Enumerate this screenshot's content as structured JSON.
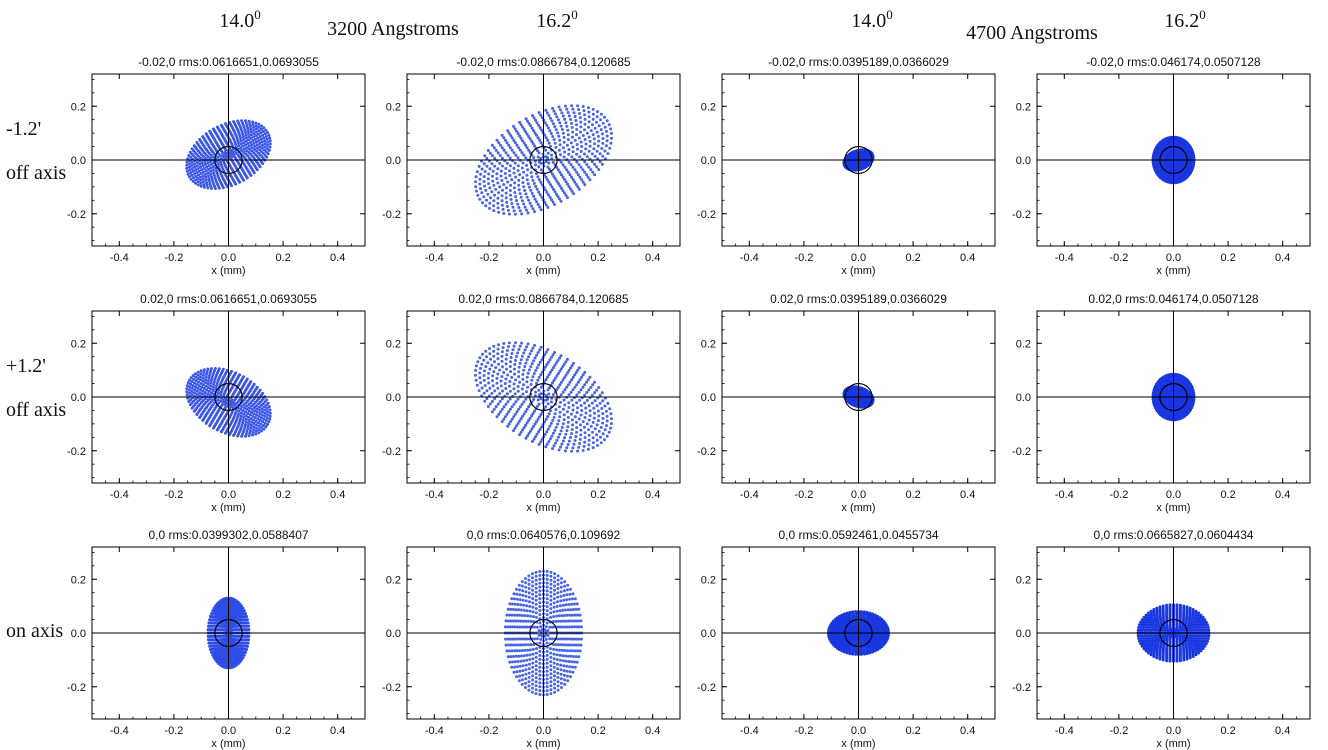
{
  "figure": {
    "col_headers": [
      {
        "base": "14.0",
        "sup": "0"
      },
      {
        "base": "16.2",
        "sup": "0"
      },
      {
        "base": "14.0",
        "sup": "0"
      },
      {
        "base": "16.2",
        "sup": "0"
      }
    ],
    "group_labels": [
      "3200 Angstroms",
      "4700 Angstroms"
    ],
    "row_labels": [
      [
        "-1.2'",
        "off axis"
      ],
      [
        "+1.2'",
        "off axis"
      ],
      [
        "on axis"
      ]
    ]
  },
  "chart_data": [
    {
      "type": "scatter",
      "row": 0,
      "col": 0,
      "title": "-0.02,0 rms:0.0616651,0.0693055",
      "xlabel": "x (mm)",
      "ylabel": "",
      "xlim": [
        -0.5,
        0.5
      ],
      "ylim": [
        -0.32,
        0.32
      ],
      "xticks": [
        -0.4,
        -0.2,
        0.0,
        0.2,
        0.4
      ],
      "yticks": [
        0.2,
        0.0,
        -0.2
      ],
      "color": "#3b57ea",
      "spot": {
        "center": [
          0.0,
          0.02
        ],
        "semi_major": 0.165,
        "semi_minor": 0.11,
        "tilt_deg": 30
      },
      "circle_radius": 0.05
    },
    {
      "type": "scatter",
      "row": 0,
      "col": 1,
      "title": "-0.02,0 rms:0.0866784,0.120685",
      "xlabel": "x (mm)",
      "ylabel": "",
      "xlim": [
        -0.5,
        0.5
      ],
      "ylim": [
        -0.32,
        0.32
      ],
      "xticks": [
        -0.4,
        -0.2,
        0.0,
        0.2,
        0.4
      ],
      "yticks": [
        0.2,
        0.0,
        -0.2
      ],
      "color": "#4a64e8",
      "spot": {
        "center": [
          0.0,
          0.0
        ],
        "semi_major": 0.275,
        "semi_minor": 0.165,
        "tilt_deg": 32
      },
      "circle_radius": 0.05
    },
    {
      "type": "scatter",
      "row": 0,
      "col": 2,
      "title": "-0.02,0 rms:0.0395189,0.0366029",
      "xlabel": "x (mm)",
      "ylabel": "",
      "xlim": [
        -0.5,
        0.5
      ],
      "ylim": [
        -0.32,
        0.32
      ],
      "xticks": [
        -0.4,
        -0.2,
        0.0,
        0.2,
        0.4
      ],
      "yticks": [
        0.2,
        0.0,
        -0.2
      ],
      "color": "#1a36e0",
      "spot": {
        "center": [
          0.0,
          0.0
        ],
        "semi_major": 0.055,
        "semi_minor": 0.035,
        "tilt_deg": 20
      },
      "circle_radius": 0.05
    },
    {
      "type": "scatter",
      "row": 0,
      "col": 3,
      "title": "-0.02,0 rms:0.046174,0.0507128",
      "xlabel": "x (mm)",
      "ylabel": "",
      "xlim": [
        -0.5,
        0.5
      ],
      "ylim": [
        -0.32,
        0.32
      ],
      "xticks": [
        -0.4,
        -0.2,
        0.0,
        0.2,
        0.4
      ],
      "yticks": [
        0.2,
        0.0,
        -0.2
      ],
      "color": "#1a36e0",
      "spot": {
        "center": [
          0.0,
          0.0
        ],
        "semi_major": 0.085,
        "semi_minor": 0.075,
        "tilt_deg": 90
      },
      "circle_radius": 0.05
    },
    {
      "type": "scatter",
      "row": 1,
      "col": 0,
      "title": "0.02,0 rms:0.0616651,0.0693055",
      "xlabel": "x (mm)",
      "ylabel": "",
      "xlim": [
        -0.5,
        0.5
      ],
      "ylim": [
        -0.32,
        0.32
      ],
      "xticks": [
        -0.4,
        -0.2,
        0.0,
        0.2,
        0.4
      ],
      "yticks": [
        0.2,
        0.0,
        -0.2
      ],
      "color": "#3b57ea",
      "spot": {
        "center": [
          0.0,
          -0.02
        ],
        "semi_major": 0.165,
        "semi_minor": 0.11,
        "tilt_deg": -30
      },
      "circle_radius": 0.05
    },
    {
      "type": "scatter",
      "row": 1,
      "col": 1,
      "title": "0.02,0 rms:0.0866784,0.120685",
      "xlabel": "x (mm)",
      "ylabel": "",
      "xlim": [
        -0.5,
        0.5
      ],
      "ylim": [
        -0.32,
        0.32
      ],
      "xticks": [
        -0.4,
        -0.2,
        0.0,
        0.2,
        0.4
      ],
      "yticks": [
        0.2,
        0.0,
        -0.2
      ],
      "color": "#4a64e8",
      "spot": {
        "center": [
          0.0,
          0.0
        ],
        "semi_major": 0.275,
        "semi_minor": 0.165,
        "tilt_deg": -32
      },
      "circle_radius": 0.05
    },
    {
      "type": "scatter",
      "row": 1,
      "col": 2,
      "title": "0.02,0 rms:0.0395189,0.0366029",
      "xlabel": "x (mm)",
      "ylabel": "",
      "xlim": [
        -0.5,
        0.5
      ],
      "ylim": [
        -0.32,
        0.32
      ],
      "xticks": [
        -0.4,
        -0.2,
        0.0,
        0.2,
        0.4
      ],
      "yticks": [
        0.2,
        0.0,
        -0.2
      ],
      "color": "#1a36e0",
      "spot": {
        "center": [
          0.0,
          0.0
        ],
        "semi_major": 0.055,
        "semi_minor": 0.035,
        "tilt_deg": -20
      },
      "circle_radius": 0.05
    },
    {
      "type": "scatter",
      "row": 1,
      "col": 3,
      "title": "0.02,0 rms:0.046174,0.0507128",
      "xlabel": "x (mm)",
      "ylabel": "",
      "xlim": [
        -0.5,
        0.5
      ],
      "ylim": [
        -0.32,
        0.32
      ],
      "xticks": [
        -0.4,
        -0.2,
        0.0,
        0.2,
        0.4
      ],
      "yticks": [
        0.2,
        0.0,
        -0.2
      ],
      "color": "#1a36e0",
      "spot": {
        "center": [
          0.0,
          0.0
        ],
        "semi_major": 0.085,
        "semi_minor": 0.075,
        "tilt_deg": 90
      },
      "circle_radius": 0.05
    },
    {
      "type": "scatter",
      "row": 2,
      "col": 0,
      "title": "0,0 rms:0.0399302,0.0588407",
      "xlabel": "x (mm)",
      "ylabel": "",
      "xlim": [
        -0.5,
        0.5
      ],
      "ylim": [
        -0.32,
        0.32
      ],
      "xticks": [
        -0.4,
        -0.2,
        0.0,
        0.2,
        0.4
      ],
      "yticks": [
        0.2,
        0.0,
        -0.2
      ],
      "color": "#2f4ce6",
      "spot": {
        "center": [
          0.0,
          0.0
        ],
        "semi_major": 0.13,
        "semi_minor": 0.075,
        "tilt_deg": 90
      },
      "circle_radius": 0.05
    },
    {
      "type": "scatter",
      "row": 2,
      "col": 1,
      "title": "0,0 rms:0.0640576,0.109692",
      "xlabel": "x (mm)",
      "ylabel": "",
      "xlim": [
        -0.5,
        0.5
      ],
      "ylim": [
        -0.32,
        0.32
      ],
      "xticks": [
        -0.4,
        -0.2,
        0.0,
        0.2,
        0.4
      ],
      "yticks": [
        0.2,
        0.0,
        -0.2
      ],
      "color": "#4a64e8",
      "spot": {
        "center": [
          0.0,
          0.0
        ],
        "semi_major": 0.23,
        "semi_minor": 0.14,
        "tilt_deg": 90
      },
      "circle_radius": 0.05
    },
    {
      "type": "scatter",
      "row": 2,
      "col": 2,
      "title": "0,0 rms:0.0592461,0.0455734",
      "xlabel": "x (mm)",
      "ylabel": "",
      "xlim": [
        -0.5,
        0.5
      ],
      "ylim": [
        -0.32,
        0.32
      ],
      "xticks": [
        -0.4,
        -0.2,
        0.0,
        0.2,
        0.4
      ],
      "yticks": [
        0.2,
        0.0,
        -0.2
      ],
      "color": "#1a36e0",
      "spot": {
        "center": [
          0.0,
          0.0
        ],
        "semi_major": 0.11,
        "semi_minor": 0.08,
        "tilt_deg": 0
      },
      "circle_radius": 0.05
    },
    {
      "type": "scatter",
      "row": 2,
      "col": 3,
      "title": "0,0 rms:0.0665827,0.0604434",
      "xlabel": "x (mm)",
      "ylabel": "",
      "xlim": [
        -0.5,
        0.5
      ],
      "ylim": [
        -0.32,
        0.32
      ],
      "xticks": [
        -0.4,
        -0.2,
        0.0,
        0.2,
        0.4
      ],
      "yticks": [
        0.2,
        0.0,
        -0.2
      ],
      "color": "#1a36e0",
      "spot": {
        "center": [
          0.0,
          0.0
        ],
        "semi_major": 0.13,
        "semi_minor": 0.105,
        "tilt_deg": 0
      },
      "circle_radius": 0.05
    }
  ]
}
